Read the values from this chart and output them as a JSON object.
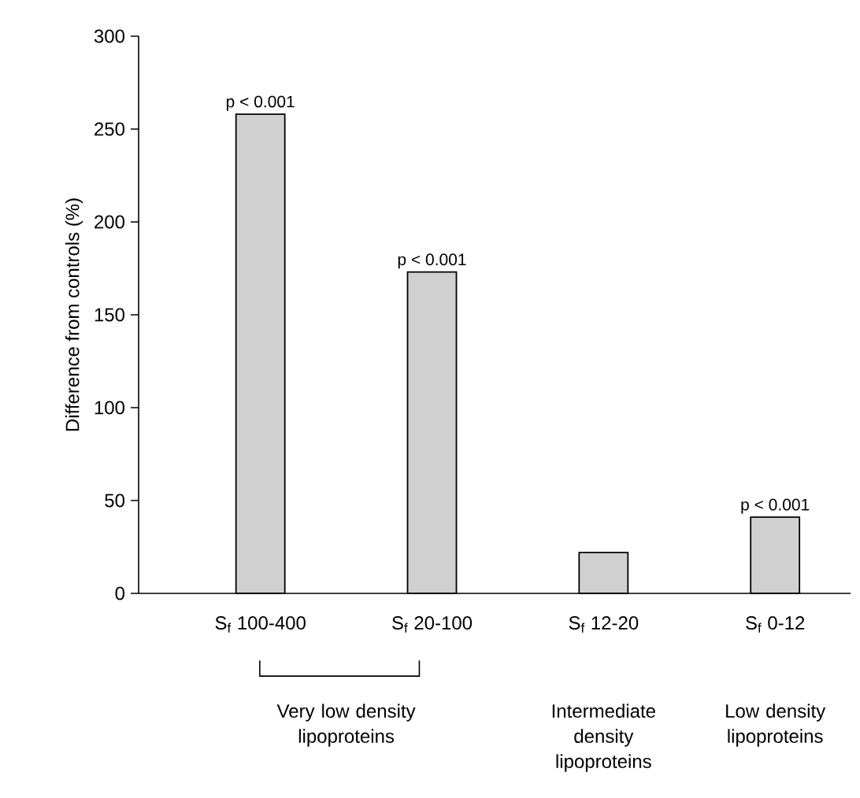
{
  "chart_data": {
    "type": "bar",
    "ylabel": "Difference from controls (%)",
    "categories": [
      "S$_{f}$ 100-400",
      "S$_{f}$ 20-100",
      "S$_{f}$ 12-20",
      "S$_{f}$ 0-12"
    ],
    "values": [
      258,
      173,
      22,
      41
    ],
    "color": "#d0d0d0",
    "ylim": [
      0,
      300
    ],
    "yticks": [
      0,
      50,
      100,
      150,
      200,
      250,
      300
    ],
    "annotations": [
      {
        "text": "p < 0.001",
        "x": "S$_{f}$ 100-400",
        "y": 258
      },
      {
        "text": "p < 0.001",
        "x": "S$_{f}$ 20-100",
        "y": 173
      },
      {
        "text": "p < 0.001",
        "x": "S$_{f}$ 0-12",
        "y": 41
      },
      "Very low density lipoproteins",
      "Intermediate density lipoproteins",
      "Low density lipoproteins"
    ]
  }
}
